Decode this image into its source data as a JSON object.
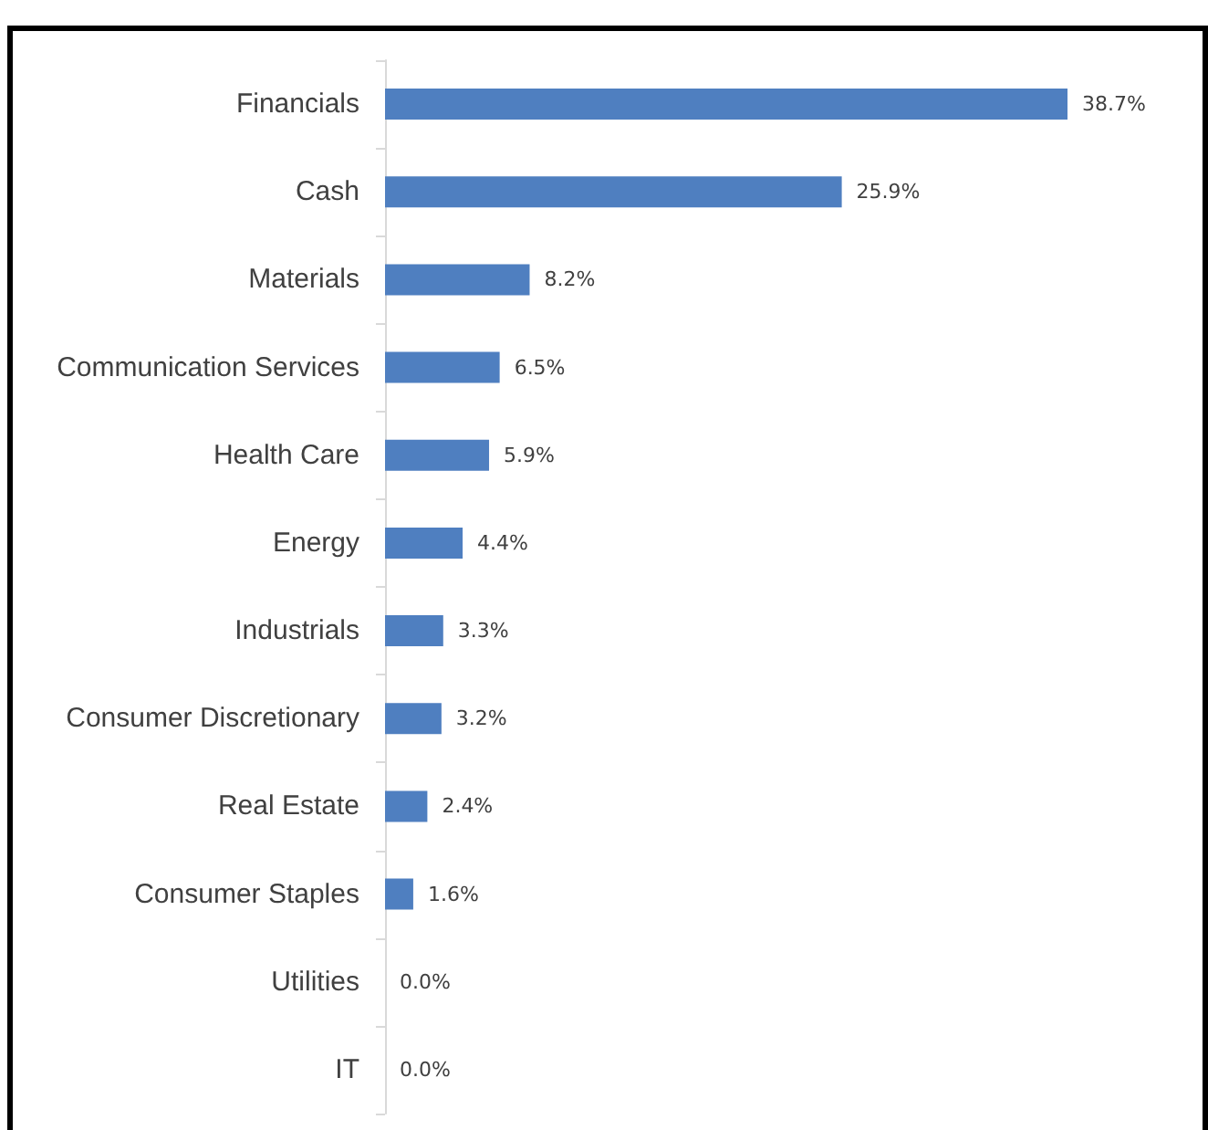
{
  "chart_data": {
    "type": "bar",
    "orientation": "horizontal",
    "categories": [
      "Financials",
      "Cash",
      "Materials",
      "Communication Services",
      "Health Care",
      "Energy",
      "Industrials",
      "Consumer Discretionary",
      "Real Estate",
      "Consumer Staples",
      "Utilities",
      "IT"
    ],
    "values": [
      38.7,
      25.9,
      8.2,
      6.5,
      5.9,
      4.4,
      3.3,
      3.2,
      2.4,
      1.6,
      0.0,
      0.0
    ],
    "value_labels": [
      "38.7%",
      "25.9%",
      "8.2%",
      "6.5%",
      "5.9%",
      "4.4%",
      "3.3%",
      "3.2%",
      "2.4%",
      "1.6%",
      "0.0%",
      "0.0%"
    ],
    "color": "#4f7fc0",
    "tick_labels": "y"
  }
}
